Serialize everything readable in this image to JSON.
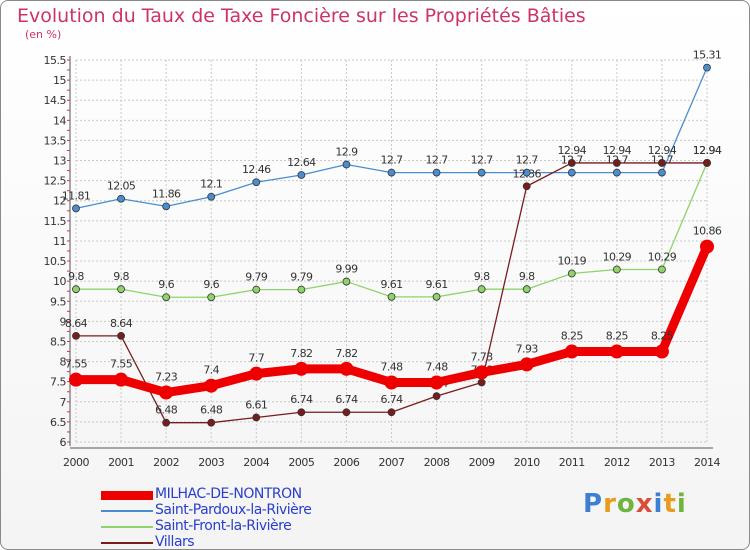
{
  "chart_data": {
    "type": "line",
    "title": "Evolution du Taux de Taxe Foncière sur les Propriétés Bâties",
    "subtitle": "(en %)",
    "x": [
      "2000",
      "2001",
      "2002",
      "2003",
      "2004",
      "2005",
      "2006",
      "2007",
      "2008",
      "2009",
      "2010",
      "2011",
      "2012",
      "2013",
      "2014"
    ],
    "ylim": [
      6,
      15.5
    ],
    "yticks": [
      "6",
      "6.5",
      "7",
      "7.5",
      "8",
      "8.5",
      "9",
      "9.5",
      "10",
      "10.5",
      "11",
      "11.5",
      "12",
      "12.5",
      "13",
      "13.5",
      "14",
      "14.5",
      "15",
      "15.5"
    ],
    "grid": true,
    "legend_position": "bottom-left",
    "series": [
      {
        "name": "Saint-Pardoux-la-Rivière",
        "color": "#4a8ed0",
        "values": [
          11.81,
          12.05,
          11.86,
          12.1,
          12.46,
          12.64,
          12.9,
          12.7,
          12.7,
          12.7,
          12.7,
          12.7,
          12.7,
          12.7,
          15.31
        ],
        "labels": [
          "11.81",
          "12.05",
          "11.86",
          "12.1",
          "12.46",
          "12.64",
          "12.9",
          "12.7",
          "12.7",
          "12.7",
          "12.7",
          "12.7",
          "12.7",
          "12.7",
          "15.31"
        ]
      },
      {
        "name": "Saint-Front-la-Rivière",
        "color": "#8fd36a",
        "values": [
          9.8,
          9.8,
          9.6,
          9.6,
          9.79,
          9.79,
          9.99,
          9.61,
          9.61,
          9.8,
          9.8,
          10.19,
          10.29,
          10.29,
          12.94
        ],
        "labels": [
          "9.8",
          "9.8",
          "9.6",
          "9.6",
          "9.79",
          "9.79",
          "9.99",
          "9.61",
          "9.61",
          "9.8",
          "9.8",
          "10.19",
          "10.29",
          "10.29",
          "12.94"
        ]
      },
      {
        "name": "Villars",
        "color": "#7a1c1c",
        "values": [
          8.64,
          8.64,
          6.48,
          6.48,
          6.61,
          6.74,
          6.74,
          6.74,
          7.14,
          7.48,
          12.36,
          12.94,
          12.94,
          12.94,
          12.94
        ],
        "labels": [
          "8.64",
          "8.64",
          "6.48",
          "6.48",
          "6.61",
          "6.74",
          "6.74",
          "6.74",
          "7.14",
          "7.48",
          "12.36",
          "12.94",
          "12.94",
          "12.94",
          "12.94"
        ]
      },
      {
        "name": "MILHAC-DE-NONTRON",
        "color": "#ee0000",
        "values": [
          7.55,
          7.55,
          7.23,
          7.4,
          7.7,
          7.82,
          7.82,
          7.48,
          7.48,
          7.73,
          7.93,
          8.25,
          8.25,
          8.25,
          10.86
        ],
        "labels": [
          "7.55",
          "7.55",
          "7.23",
          "7.4",
          "7.7",
          "7.82",
          "7.82",
          "7.48",
          "7.48",
          "7.73",
          "7.93",
          "8.25",
          "8.25",
          "8.25",
          "10.86"
        ]
      }
    ],
    "legend_order": [
      "MILHAC-DE-NONTRON",
      "Saint-Pardoux-la-Rivière",
      "Saint-Front-la-Rivière",
      "Villars"
    ]
  },
  "logo": {
    "p": "P",
    "r": "r",
    "o": "o",
    "x": "x",
    "i1": "i",
    "t": "t",
    "i2": "i"
  }
}
